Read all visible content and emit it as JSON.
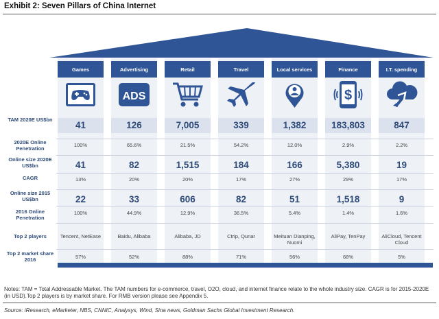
{
  "title": "Exhibit 2: Seven Pillars of China Internet",
  "row_labels": [
    "TAM 2020E US$bn",
    "2020E Online Penetration",
    "Online size 2020E US$bn",
    "CAGR",
    "Online size 2015 US$bn",
    "2016 Online Penetration",
    "Top 2 players",
    "Top 2 market share 2016"
  ],
  "columns": [
    {
      "header": "Games",
      "icon": "game-controller-icon",
      "values": [
        "41",
        "100%",
        "41",
        "13%",
        "22",
        "100%",
        "Tencent, NetEase",
        "57%"
      ]
    },
    {
      "header": "Advertising",
      "icon": "ads-icon",
      "icon_text": "ADS",
      "values": [
        "126",
        "65.6%",
        "82",
        "20%",
        "33",
        "44.9%",
        "Baidu, Alibaba",
        "52%"
      ]
    },
    {
      "header": "Retail",
      "icon": "shopping-cart-icon",
      "values": [
        "7,005",
        "21.5%",
        "1,515",
        "20%",
        "606",
        "12.9%",
        "Alibaba, JD",
        "88%"
      ]
    },
    {
      "header": "Travel",
      "icon": "airplane-icon",
      "values": [
        "339",
        "54.2%",
        "184",
        "17%",
        "82",
        "36.5%",
        "Ctrip, Qunar",
        "71%"
      ]
    },
    {
      "header": "Local services",
      "icon": "location-pin-icon",
      "values": [
        "1,382",
        "12.0%",
        "166",
        "27%",
        "51",
        "5.4%",
        "Meituan Dianping, Nuomi",
        "56%"
      ]
    },
    {
      "header": "Finance",
      "icon": "mobile-payment-icon",
      "icon_text": "$",
      "values": [
        "183,803",
        "2.9%",
        "5,380",
        "29%",
        "1,518",
        "1.4%",
        "AliPay, TenPay",
        "68%"
      ]
    },
    {
      "header": "I.T. spending",
      "icon": "cloud-icon",
      "values": [
        "847",
        "2.2%",
        "19",
        "17%",
        "9",
        "1.6%",
        "AliCloud, Tencent Cloud",
        "5%"
      ]
    }
  ],
  "notes": "Notes: TAM = Total Addressable Market. The TAM numbers for e-commerce, travel, O2O, cloud, and internet finance relate to the whole industry size. CAGR is for 2015-2020E (in USD).Top 2 players is by market share. For RMB version please see Appendix 5.",
  "source": "Source: iResearch, eMarketer, NBS, CNNIC, Analysys, Wind, Sina news, Goldman Sachs Global Investment Research."
}
